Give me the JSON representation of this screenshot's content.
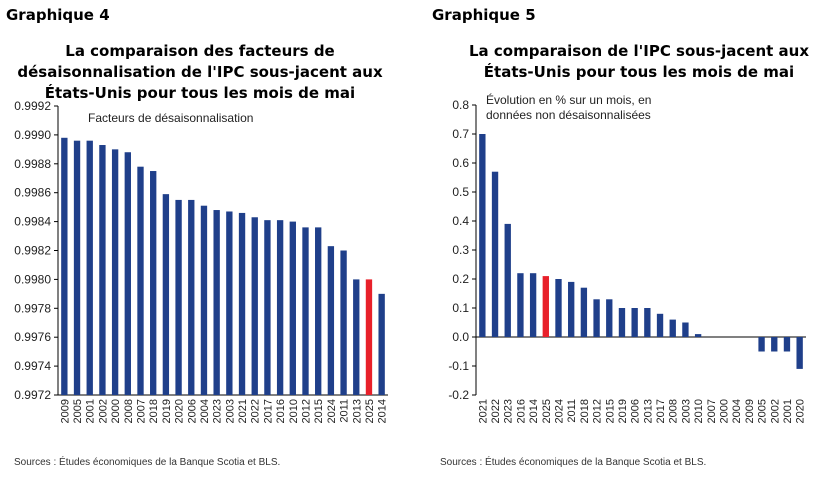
{
  "charts": [
    {
      "heading": "Graphique 4",
      "title_lines": [
        "La comparaison des facteurs de",
        "désaisonnalisation de l'IPC sous-jacent aux",
        "États-Unis pour tous les mois de mai"
      ],
      "source": "Sources : Études économiques de la Banque Scotia et BLS."
    },
    {
      "heading": "Graphique 5",
      "title_lines": [
        "La comparaison de l'IPC sous-jacent aux",
        "États-Unis pour tous les mois de mai"
      ],
      "source": "Sources : Études économiques de la Banque Scotia et BLS."
    }
  ],
  "chart_data": [
    {
      "type": "bar",
      "title": "La comparaison des facteurs de désaisonnalisation de l'IPC sous-jacent aux États-Unis pour tous les mois de mai",
      "annotation": "Facteurs de désaisonnalisation",
      "categories": [
        "2009",
        "2005",
        "2001",
        "2002",
        "2000",
        "2008",
        "2007",
        "2018",
        "2019",
        "2020",
        "2006",
        "2004",
        "2023",
        "2003",
        "2021",
        "2022",
        "2017",
        "2016",
        "2010",
        "2012",
        "2015",
        "2024",
        "2011",
        "2013",
        "2025",
        "2014"
      ],
      "values": [
        0.99898,
        0.99896,
        0.99896,
        0.99893,
        0.9989,
        0.99888,
        0.99878,
        0.99875,
        0.99859,
        0.99855,
        0.99855,
        0.99851,
        0.99848,
        0.99847,
        0.99846,
        0.99843,
        0.99841,
        0.99841,
        0.9984,
        0.99836,
        0.99836,
        0.99823,
        0.9982,
        0.998,
        0.998,
        0.9979
      ],
      "highlight_category": "2025",
      "yticks": [
        "0.9972",
        "0.9974",
        "0.9976",
        "0.9978",
        "0.9980",
        "0.9982",
        "0.9984",
        "0.9986",
        "0.9988",
        "0.9990",
        "0.9992"
      ],
      "ylim": [
        0.9972,
        0.9992
      ],
      "colors": {
        "bar": "#1f3f8a",
        "highlight": "#e8202a"
      },
      "grid": false
    },
    {
      "type": "bar",
      "title": "La comparaison de l'IPC sous-jacent aux États-Unis pour tous les mois de mai",
      "annotation_lines": [
        "Évolution en % sur un mois, en",
        "données non désaisonnalisées"
      ],
      "categories": [
        "2021",
        "2022",
        "2023",
        "2016",
        "2014",
        "2025",
        "2024",
        "2011",
        "2018",
        "2012",
        "2015",
        "2019",
        "2006",
        "2013",
        "2017",
        "2008",
        "2003",
        "2010",
        "2007",
        "2000",
        "2004",
        "2009",
        "2005",
        "2002",
        "2001",
        "2020"
      ],
      "values": [
        0.7,
        0.57,
        0.39,
        0.22,
        0.22,
        0.21,
        0.2,
        0.19,
        0.17,
        0.13,
        0.13,
        0.1,
        0.1,
        0.1,
        0.08,
        0.06,
        0.05,
        0.01,
        0.0,
        0.0,
        0.0,
        0.0,
        -0.05,
        -0.05,
        -0.05,
        -0.11
      ],
      "highlight_category": "2025",
      "yticks": [
        "-0.2",
        "-0.1",
        "0.0",
        "0.1",
        "0.2",
        "0.3",
        "0.4",
        "0.5",
        "0.6",
        "0.7",
        "0.8"
      ],
      "ylim": [
        -0.2,
        0.8
      ],
      "colors": {
        "bar": "#1f3f8a",
        "highlight": "#e8202a"
      },
      "grid": false
    }
  ]
}
